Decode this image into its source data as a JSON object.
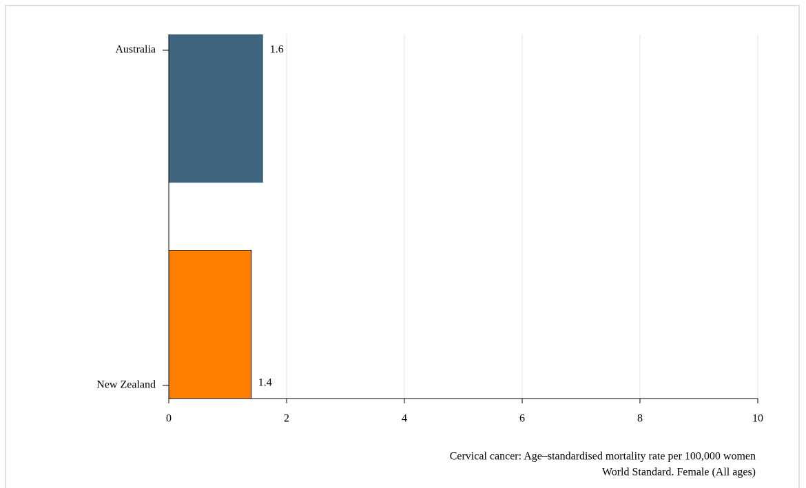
{
  "chart_data": {
    "type": "barh",
    "categories": [
      "Australia",
      "New Zealand"
    ],
    "values": [
      1.6,
      1.4
    ],
    "colors": [
      "#3e6480",
      "#ff8000"
    ],
    "xlim": [
      0,
      10
    ],
    "xticks": [
      0,
      2,
      4,
      6,
      8,
      10
    ],
    "grid": true,
    "caption": [
      "Cervical cancer: Age–standardised mortality rate per 100,000 women",
      "World Standard. Female (All ages)"
    ]
  }
}
